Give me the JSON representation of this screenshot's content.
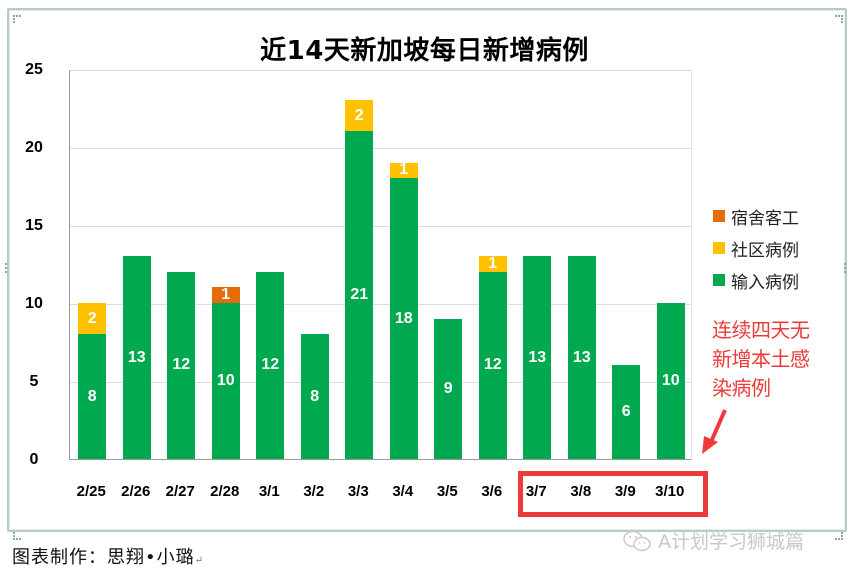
{
  "chart_data": {
    "type": "bar",
    "stacked": true,
    "title": "近14天新加坡每日新增病例",
    "xlabel": "",
    "ylabel": "",
    "ylim": [
      0,
      25
    ],
    "yticks": [
      0,
      5,
      10,
      15,
      20,
      25
    ],
    "grid": true,
    "legend_position": "right",
    "categories": [
      "2/25",
      "2/26",
      "2/27",
      "2/28",
      "3/1",
      "3/2",
      "3/3",
      "3/4",
      "3/5",
      "3/6",
      "3/7",
      "3/8",
      "3/9",
      "3/10"
    ],
    "series": [
      {
        "name": "输入病例",
        "color": "#00a84f",
        "values": [
          8,
          13,
          12,
          10,
          12,
          8,
          21,
          18,
          9,
          12,
          13,
          13,
          6,
          10
        ]
      },
      {
        "name": "社区病例",
        "color": "#ffc000",
        "values": [
          2,
          0,
          0,
          0,
          0,
          0,
          2,
          1,
          0,
          1,
          0,
          0,
          0,
          0
        ]
      },
      {
        "name": "宿舍客工",
        "color": "#e46c0a",
        "values": [
          0,
          0,
          0,
          1,
          0,
          0,
          0,
          0,
          0,
          0,
          0,
          0,
          0,
          0
        ]
      }
    ],
    "legend": [
      "宿舍客工",
      "社区病例",
      "输入病例"
    ],
    "annotations": [
      {
        "text": "连续四天无新增本土感染病例",
        "color": "#ee3a3a",
        "highlight_categories": [
          "3/7",
          "3/8",
          "3/9",
          "3/10"
        ]
      }
    ]
  },
  "annotation": {
    "lines": [
      "连续四天无",
      "新增本土感",
      "染病例"
    ]
  },
  "legend": {
    "items": [
      {
        "label": "宿舍客工",
        "color": "#e46c0a"
      },
      {
        "label": "社区病例",
        "color": "#ffc000"
      },
      {
        "label": "输入病例",
        "color": "#00a84f"
      }
    ]
  },
  "credit": {
    "text": "图表制作：思翔•小璐",
    "return_mark": "↵"
  },
  "watermark": {
    "text": "A计划学习狮城篇",
    "icon": "wechat-icon"
  },
  "colors": {
    "highlight": "#ee3a3a",
    "frame": "#b9c9cc"
  }
}
